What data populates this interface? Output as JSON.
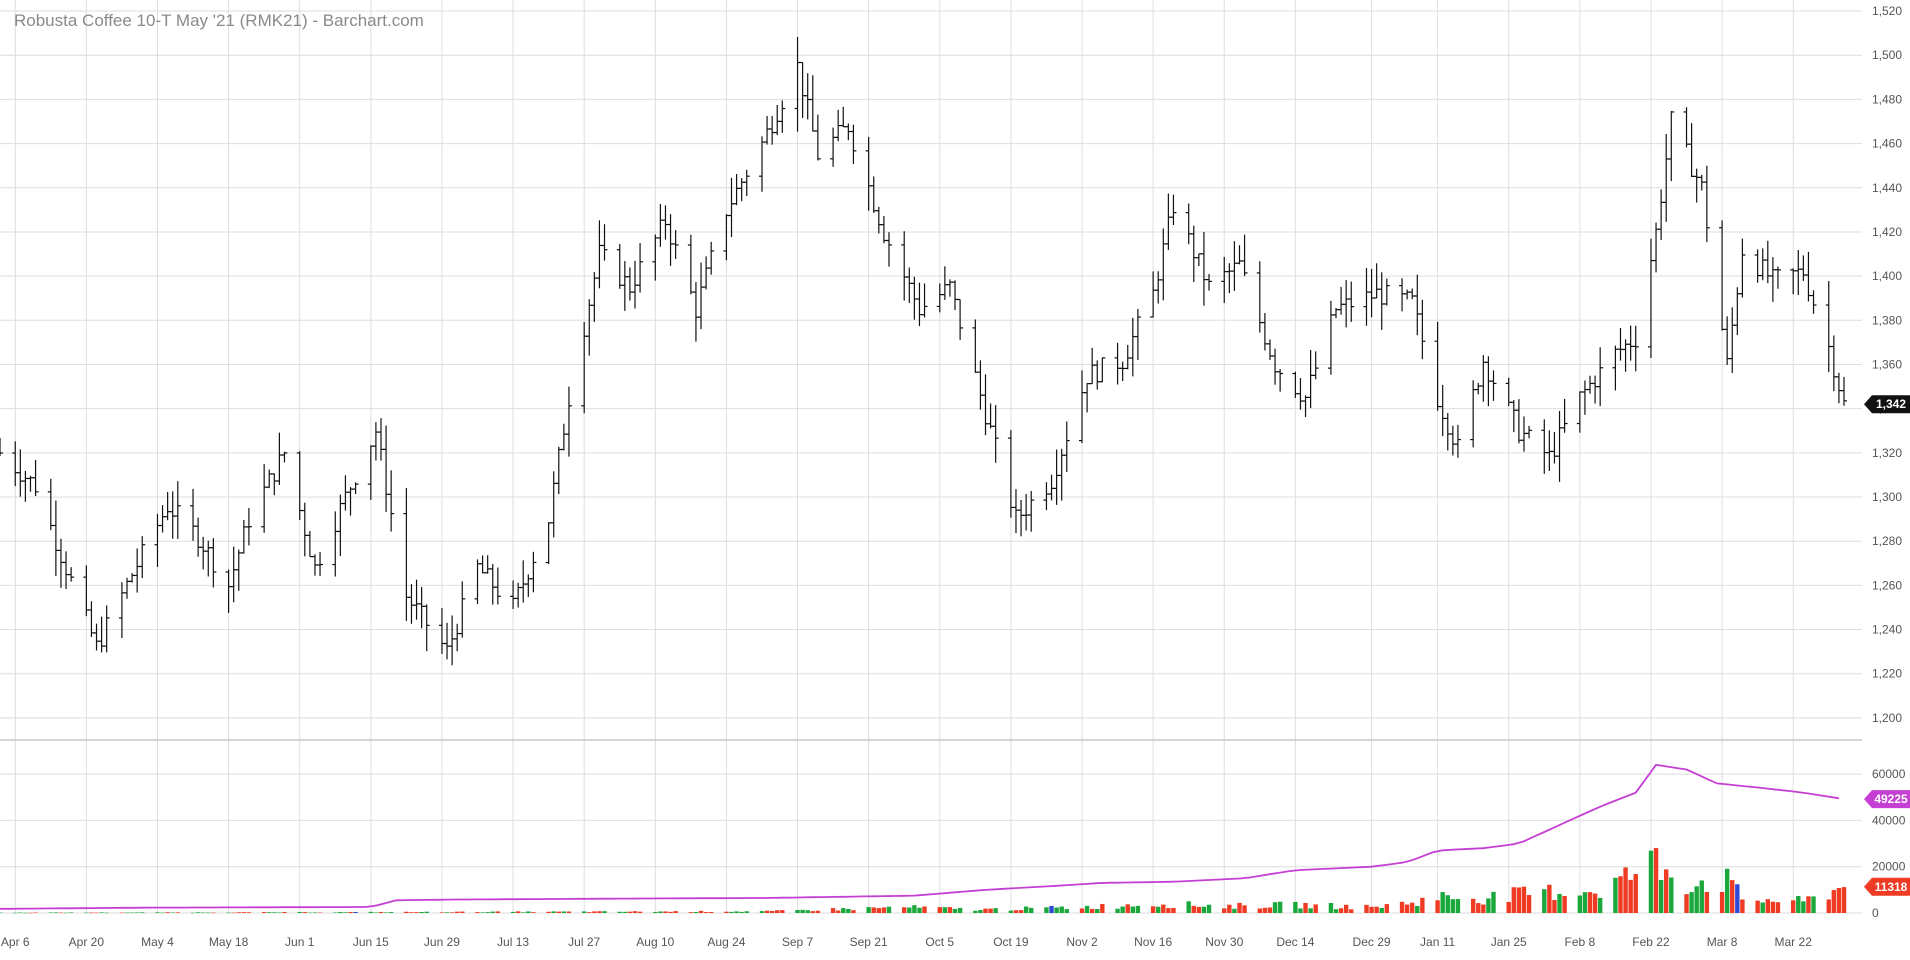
{
  "chart_data": {
    "type": "ohlc",
    "title": "Robusta Coffee 10-T May '21 (RMK21) - Barchart.com",
    "price_axis": {
      "ylim": [
        1190,
        1525
      ],
      "ticks": [
        1200,
        1220,
        1240,
        1260,
        1280,
        1300,
        1320,
        1340,
        1360,
        1380,
        1400,
        1420,
        1440,
        1460,
        1480,
        1500,
        1520
      ],
      "tick_labels": [
        "1,200",
        "1,220",
        "1,240",
        "1,260",
        "1,280",
        "1,300",
        "1,320",
        "1,340",
        "1,360",
        "1,380",
        "1,400",
        "1,420",
        "1,440",
        "1,460",
        "1,480",
        "1,500",
        "1,520"
      ]
    },
    "volume_axis": {
      "ylim": [
        0,
        70000
      ],
      "ticks": [
        0,
        20000,
        40000,
        60000
      ],
      "tick_labels": [
        "0",
        "20000",
        "40000",
        "60000"
      ]
    },
    "x_axis": {
      "range": [
        "2020-04-03",
        "2021-04-01"
      ],
      "ticks": [
        "2020-04-06",
        "2020-04-20",
        "2020-05-04",
        "2020-05-18",
        "2020-06-01",
        "2020-06-15",
        "2020-06-29",
        "2020-07-13",
        "2020-07-27",
        "2020-08-10",
        "2020-08-24",
        "2020-09-07",
        "2020-09-21",
        "2020-10-05",
        "2020-10-19",
        "2020-11-02",
        "2020-11-16",
        "2020-11-30",
        "2020-12-14",
        "2020-12-29",
        "2021-01-11",
        "2021-01-25",
        "2021-02-08",
        "2021-02-22",
        "2021-03-08",
        "2021-03-22"
      ],
      "tick_labels": [
        "Apr 6",
        "Apr 20",
        "May 4",
        "May 18",
        "Jun 1",
        "Jun 15",
        "Jun 29",
        "Jul 13",
        "Jul 27",
        "Aug 10",
        "Aug 24",
        "Sep 7",
        "Sep 21",
        "Oct 5",
        "Oct 19",
        "Nov 2",
        "Nov 16",
        "Nov 30",
        "Dec 14",
        "Dec 29",
        "Jan 11",
        "Jan 25",
        "Feb 8",
        "Feb 22",
        "Mar 8",
        "Mar 22"
      ]
    },
    "grid": true,
    "last_price": {
      "value": 1342,
      "label": "1,342"
    },
    "last_open_interest": {
      "value": 49225,
      "label": "49225"
    },
    "last_volume": {
      "value": 11318,
      "label": "11318"
    },
    "colors": {
      "bars": "#111111",
      "open_interest": "#c53fd4",
      "volume_up": "#1aa83c",
      "volume_down": "#ef3b24",
      "volume_neutral": "#2d4bd6",
      "price_badge": "#111111"
    },
    "price_path": [
      [
        "2020-04-03",
        1320
      ],
      [
        "2020-04-10",
        1305
      ],
      [
        "2020-04-16",
        1268
      ],
      [
        "2020-04-22",
        1232
      ],
      [
        "2020-04-29",
        1265
      ],
      [
        "2020-05-06",
        1296
      ],
      [
        "2020-05-12",
        1282
      ],
      [
        "2020-05-18",
        1260
      ],
      [
        "2020-05-22",
        1290
      ],
      [
        "2020-05-29",
        1320
      ],
      [
        "2020-06-04",
        1268
      ],
      [
        "2020-06-10",
        1300
      ],
      [
        "2020-06-16",
        1330
      ],
      [
        "2020-06-22",
        1255
      ],
      [
        "2020-06-30",
        1230
      ],
      [
        "2020-07-06",
        1268
      ],
      [
        "2020-07-13",
        1250
      ],
      [
        "2020-07-20",
        1290
      ],
      [
        "2020-07-24",
        1345
      ],
      [
        "2020-07-30",
        1410
      ],
      [
        "2020-08-05",
        1395
      ],
      [
        "2020-08-12",
        1425
      ],
      [
        "2020-08-18",
        1385
      ],
      [
        "2020-08-24",
        1430
      ],
      [
        "2020-08-31",
        1460
      ],
      [
        "2020-09-07",
        1495
      ],
      [
        "2020-09-11",
        1455
      ],
      [
        "2020-09-17",
        1468
      ],
      [
        "2020-09-24",
        1420
      ],
      [
        "2020-10-01",
        1385
      ],
      [
        "2020-10-07",
        1395
      ],
      [
        "2020-10-14",
        1338
      ],
      [
        "2020-10-20",
        1290
      ],
      [
        "2020-10-27",
        1308
      ],
      [
        "2020-11-03",
        1355
      ],
      [
        "2020-11-10",
        1362
      ],
      [
        "2020-11-16",
        1392
      ],
      [
        "2020-11-20",
        1432
      ],
      [
        "2020-11-27",
        1395
      ],
      [
        "2020-12-03",
        1405
      ],
      [
        "2020-12-10",
        1360
      ],
      [
        "2020-12-16",
        1345
      ],
      [
        "2020-12-22",
        1385
      ],
      [
        "2020-12-30",
        1392
      ],
      [
        "2021-01-06",
        1388
      ],
      [
        "2021-01-11",
        1345
      ],
      [
        "2021-01-15",
        1322
      ],
      [
        "2021-01-20",
        1362
      ],
      [
        "2021-01-27",
        1330
      ],
      [
        "2021-02-02",
        1318
      ],
      [
        "2021-02-08",
        1345
      ],
      [
        "2021-02-15",
        1365
      ],
      [
        "2021-02-19",
        1372
      ],
      [
        "2021-02-23",
        1420
      ],
      [
        "2021-02-26",
        1470
      ],
      [
        "2021-03-04",
        1440
      ],
      [
        "2021-03-09",
        1360
      ],
      [
        "2021-03-12",
        1412
      ],
      [
        "2021-03-18",
        1398
      ],
      [
        "2021-03-24",
        1402
      ],
      [
        "2021-03-29",
        1368
      ],
      [
        "2021-04-01",
        1342
      ]
    ],
    "open_interest_path": [
      [
        "2020-04-03",
        1800
      ],
      [
        "2020-05-01",
        2300
      ],
      [
        "2020-06-15",
        2600
      ],
      [
        "2020-06-20",
        5500
      ],
      [
        "2020-07-01",
        5800
      ],
      [
        "2020-08-01",
        6200
      ],
      [
        "2020-09-01",
        6500
      ],
      [
        "2020-09-30",
        7500
      ],
      [
        "2020-10-14",
        10000
      ],
      [
        "2020-10-26",
        11500
      ],
      [
        "2020-11-06",
        13000
      ],
      [
        "2020-11-20",
        13500
      ],
      [
        "2020-12-04",
        15000
      ],
      [
        "2020-12-14",
        18500
      ],
      [
        "2020-12-29",
        20000
      ],
      [
        "2021-01-05",
        22000
      ],
      [
        "2021-01-11",
        27000
      ],
      [
        "2021-01-20",
        28000
      ],
      [
        "2021-01-27",
        30000
      ],
      [
        "2021-02-01",
        35000
      ],
      [
        "2021-02-08",
        42000
      ],
      [
        "2021-02-12",
        46000
      ],
      [
        "2021-02-19",
        52000
      ],
      [
        "2021-02-23",
        64000
      ],
      [
        "2021-03-01",
        62000
      ],
      [
        "2021-03-07",
        56000
      ],
      [
        "2021-03-16",
        54000
      ],
      [
        "2021-03-24",
        52000
      ],
      [
        "2021-04-01",
        49225
      ]
    ],
    "volume_path": [
      [
        "2020-04-03",
        150
      ],
      [
        "2020-06-01",
        300
      ],
      [
        "2020-07-15",
        500
      ],
      [
        "2020-09-01",
        700
      ],
      [
        "2020-09-28",
        2500
      ],
      [
        "2020-10-13",
        1500
      ],
      [
        "2020-11-02",
        2500
      ],
      [
        "2020-11-16",
        4000
      ],
      [
        "2020-12-01",
        3000
      ],
      [
        "2020-12-14",
        3500
      ],
      [
        "2020-12-29",
        2500
      ],
      [
        "2021-01-06",
        4500
      ],
      [
        "2021-01-11",
        7000
      ],
      [
        "2021-01-20",
        6500
      ],
      [
        "2021-02-01",
        9000
      ],
      [
        "2021-02-12",
        10000
      ],
      [
        "2021-02-23",
        22000
      ],
      [
        "2021-03-01",
        13000
      ],
      [
        "2021-03-09",
        14000
      ],
      [
        "2021-03-12",
        6000
      ],
      [
        "2021-03-24",
        5000
      ],
      [
        "2021-04-01",
        11318
      ]
    ]
  }
}
